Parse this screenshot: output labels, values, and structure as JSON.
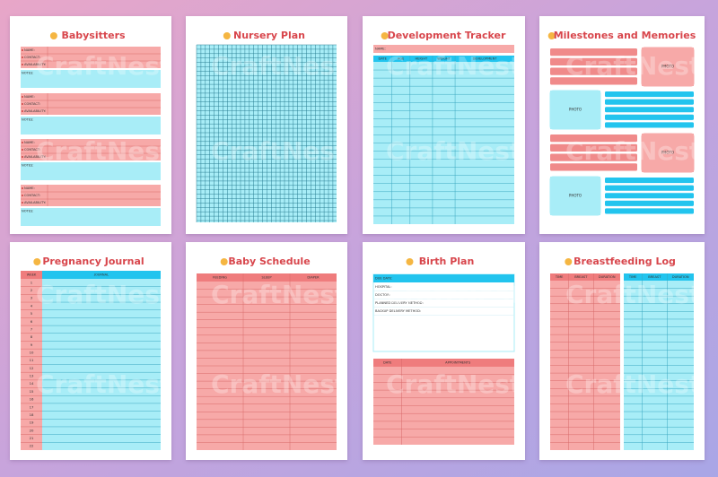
{
  "watermark": "CraftNest",
  "pages": [
    {
      "title": "Babysitters",
      "fields": [
        "NAME:",
        "CONTACT:",
        "AVAILABILITY:"
      ],
      "notes": "NOTES:"
    },
    {
      "title": "Nursery Plan"
    },
    {
      "title": "Development Tracker",
      "name": "NAME:",
      "columns": [
        "DATE",
        "AGE",
        "HEIGHT",
        "WEIGHT",
        "DEVELOPMENT"
      ]
    },
    {
      "title": "Milestones and Memories",
      "photo": "PHOTO"
    },
    {
      "title": "Pregnancy Journal",
      "columns": [
        "WEEK",
        "JOURNAL"
      ],
      "weeks": [
        1,
        2,
        3,
        4,
        5,
        6,
        7,
        8,
        9,
        10,
        11,
        12,
        13,
        14,
        15,
        16,
        17,
        18,
        19,
        20,
        21,
        22
      ]
    },
    {
      "title": "Baby Schedule",
      "columns": [
        "FEEDING",
        "SLEEP",
        "DIAPER"
      ]
    },
    {
      "title": "Birth Plan",
      "fields": [
        "DUE DATE:",
        "HOSPITAL:",
        "DOCTOR:",
        "PLANNED DELIVERY METHOD:",
        "BACKUP DELIVERY METHOD:"
      ],
      "columns": [
        "DATE",
        "APPOINTMENTS"
      ]
    },
    {
      "title": "Breastfeeding Log",
      "columns": [
        "TIME",
        "BREAST",
        "DURATION"
      ]
    }
  ]
}
